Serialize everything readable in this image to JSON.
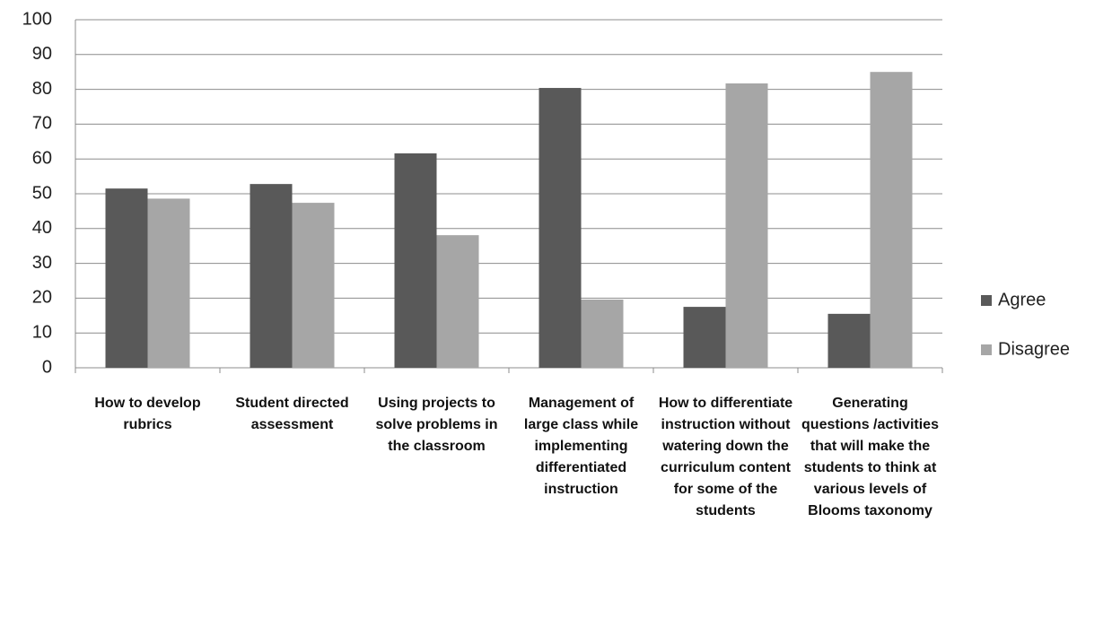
{
  "chart_data": {
    "type": "bar",
    "categories": [
      "How to develop rubrics",
      "Student directed assessment",
      "Using projects to solve problems in the classroom",
      "Management of large class while implementing differentiated instruction",
      "How to differentiate instruction without watering down the curriculum content for some of the students",
      "Generating questions /activities that will make the students to think at various levels of Blooms taxonomy"
    ],
    "series": [
      {
        "name": "Agree",
        "color": "#595959",
        "values": [
          51.5,
          52.8,
          61.6,
          80.4,
          17.5,
          15.5
        ]
      },
      {
        "name": "Disagree",
        "color": "#a6a6a6",
        "values": [
          48.6,
          47.4,
          38.1,
          19.6,
          81.7,
          85
        ]
      }
    ],
    "ylim": [
      0,
      100
    ],
    "yticks": [
      0,
      10,
      20,
      30,
      40,
      50,
      60,
      70,
      80,
      90,
      100
    ],
    "grid": true,
    "legend": "right"
  }
}
